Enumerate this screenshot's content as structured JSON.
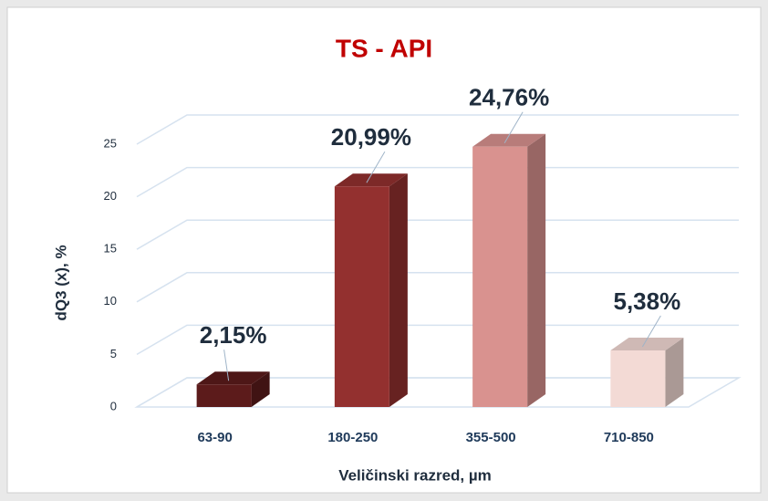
{
  "chart_data": {
    "type": "bar3d",
    "title": "TS - API",
    "xlabel": "Veličinski razred, µm",
    "ylabel": "dQ3 (x), %",
    "categories": [
      "63-90",
      "180-250",
      "355-500",
      "710-850"
    ],
    "values": [
      2.15,
      20.99,
      24.76,
      5.38
    ],
    "value_labels": [
      "2,15%",
      "20,99%",
      "24,76%",
      "5,38%"
    ],
    "colors": [
      "#5c1b1b",
      "#93302f",
      "#d9928f",
      "#f3dad5"
    ],
    "ylim": [
      0,
      25
    ],
    "yticks": [
      0,
      5,
      10,
      15,
      20,
      25
    ],
    "grid": true
  }
}
